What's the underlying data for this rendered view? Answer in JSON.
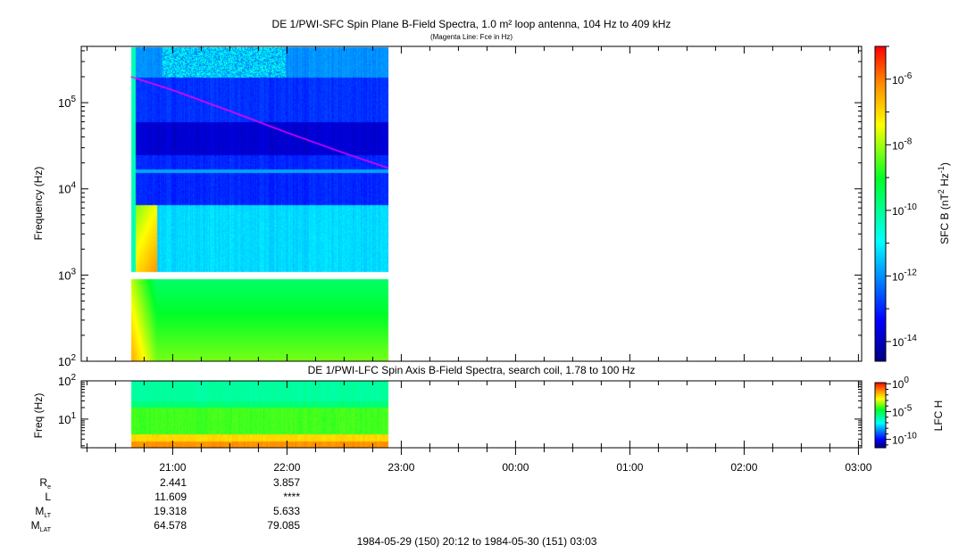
{
  "chart_data": [
    {
      "type": "heatmap",
      "title": "DE 1/PWI-SFC  Spin Plane B-Field Spectra, 1.0 m² loop antenna, 104 Hz to 409 kHz",
      "subtitle": "(Magenta Line: Fce in Hz)",
      "ylabel": "Frequency (Hz)",
      "yscale": "log",
      "ylim": [
        100,
        450000
      ],
      "yticks": [
        {
          "v": 100,
          "label": "10",
          "exp": "2"
        },
        {
          "v": 1000,
          "label": "10",
          "exp": "3"
        },
        {
          "v": 10000,
          "label": "10",
          "exp": "4"
        },
        {
          "v": 100000,
          "label": "10",
          "exp": "5"
        }
      ],
      "data_time_range": [
        "20:38",
        "22:53"
      ],
      "colorbar": {
        "label": "SFC B (nT",
        "label_sup1": "2",
        "label_mid": " Hz",
        "label_sup2": "-1",
        "label_end": ")",
        "scale": "log",
        "range_log10": [
          -14.6,
          -5.0
        ],
        "ticks": [
          {
            "v": -6,
            "label": "10",
            "exp": "-6"
          },
          {
            "v": -8,
            "label": "10",
            "exp": "-8"
          },
          {
            "v": -10,
            "label": "10",
            "exp": "-10"
          },
          {
            "v": -12,
            "label": "10",
            "exp": "-12"
          },
          {
            "v": -14,
            "label": "10",
            "exp": "-14"
          }
        ]
      },
      "bands_log10_intensity": [
        {
          "f": [
            200000,
            450000
          ],
          "level": -12.0
        },
        {
          "f": [
            60000,
            200000
          ],
          "level": -12.9
        },
        {
          "f": [
            25000,
            60000
          ],
          "level": -13.8
        },
        {
          "f": [
            6500,
            25000
          ],
          "level": -13.0
        },
        {
          "f": [
            1100,
            6500
          ],
          "level": -11.3
        },
        {
          "f": [
            900,
            1100
          ],
          "level": null
        },
        {
          "f": [
            100,
            900
          ],
          "level": -9.0
        }
      ],
      "fce_line": {
        "color": "#ff00ff",
        "points": [
          [
            "20:38",
            200000
          ],
          [
            "21:00",
            140000
          ],
          [
            "21:30",
            80000
          ],
          [
            "22:00",
            45000
          ],
          [
            "22:30",
            26000
          ],
          [
            "22:53",
            17500
          ]
        ]
      }
    },
    {
      "type": "heatmap",
      "title": "DE 1/PWI-LFC  Spin Axis B-Field Spectra, search coil, 1.78 to 100 Hz",
      "ylabel": "Freq (Hz)",
      "yscale": "log",
      "ylim": [
        1.78,
        100
      ],
      "yticks": [
        {
          "v": 10,
          "label": "10",
          "exp": "1"
        },
        {
          "v": 100,
          "label": "10",
          "exp": "2"
        }
      ],
      "colorbar": {
        "label": "LFC H",
        "scale": "log",
        "range_log10": [
          -11.5,
          0.2
        ],
        "ticks": [
          {
            "v": 0,
            "label": "10",
            "exp": "0"
          },
          {
            "v": -5,
            "label": "10",
            "exp": "-5"
          },
          {
            "v": -10,
            "label": "10",
            "exp": "-10"
          }
        ]
      },
      "bands_log10_intensity": [
        {
          "f": [
            30,
            100
          ],
          "level": -6.0
        },
        {
          "f": [
            20,
            30
          ],
          "level": -5.6
        },
        {
          "f": [
            4.2,
            20
          ],
          "level": -4.2
        },
        {
          "f": [
            2.6,
            4.2
          ],
          "level": -2.2
        },
        {
          "f": [
            1.78,
            2.6
          ],
          "level": -1.3
        }
      ]
    }
  ],
  "xaxis": {
    "ticks": [
      "21:00",
      "22:00",
      "23:00",
      "00:00",
      "01:00",
      "02:00",
      "03:00"
    ],
    "range": "1984-05-29 (150) 20:12 to 1984-05-30 (151) 03:03"
  },
  "ephemeris": {
    "rows": [
      {
        "label": "R",
        "sub": "e",
        "values": [
          "2.441",
          "3.857"
        ]
      },
      {
        "label": "L",
        "sub": "",
        "values": [
          "11.609",
          "****"
        ]
      },
      {
        "label": "M",
        "sub": "LT",
        "values": [
          "19.318",
          "5.633"
        ]
      },
      {
        "label": "M",
        "sub": "LAT",
        "values": [
          "64.578",
          "79.085"
        ]
      }
    ]
  }
}
